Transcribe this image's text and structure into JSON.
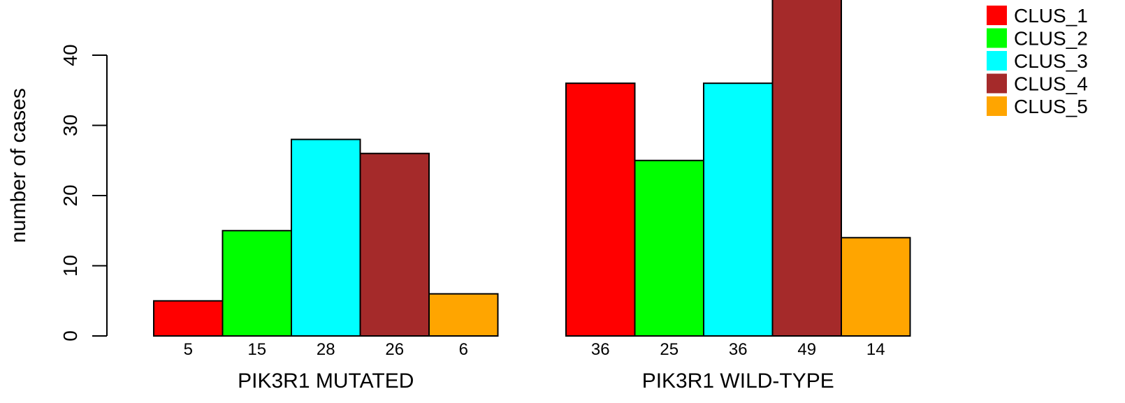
{
  "chart_data": {
    "type": "bar",
    "title": "",
    "xlabel": "",
    "ylabel": "number of cases",
    "ylim": [
      0,
      50
    ],
    "yticks": [
      0,
      10,
      20,
      30,
      40
    ],
    "grid": false,
    "legend_position": "top-right",
    "groups": [
      "PIK3R1 MUTATED",
      "PIK3R1 WILD-TYPE"
    ],
    "series": [
      {
        "name": "CLUS_1",
        "color": "#ff0000",
        "values": [
          5,
          36
        ]
      },
      {
        "name": "CLUS_2",
        "color": "#00ff00",
        "values": [
          15,
          25
        ]
      },
      {
        "name": "CLUS_3",
        "color": "#00ffff",
        "values": [
          28,
          36
        ]
      },
      {
        "name": "CLUS_4",
        "color": "#a52a2a",
        "values": [
          26,
          49
        ]
      },
      {
        "name": "CLUS_5",
        "color": "#ffa500",
        "values": [
          6,
          14
        ]
      }
    ]
  }
}
